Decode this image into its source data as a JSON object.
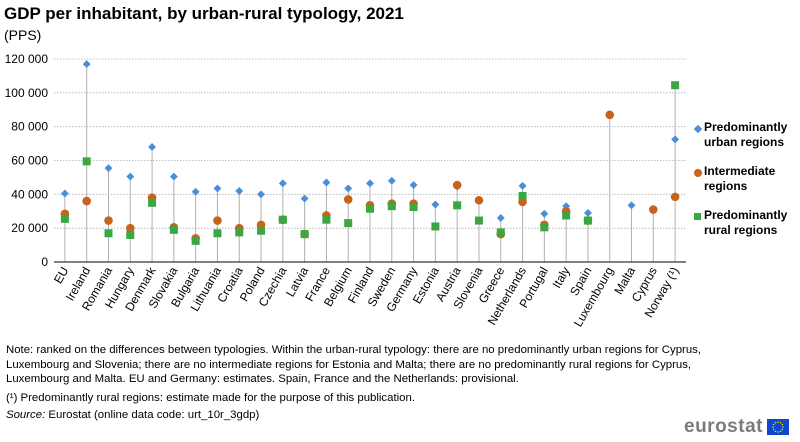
{
  "title": "GDP per inhabitant, by urban-rural typology, 2021",
  "subtitle": "(PPS)",
  "chart_data": {
    "type": "scatter",
    "categories": [
      "EU",
      "Ireland",
      "Romania",
      "Hungary",
      "Denmark",
      "Slovakia",
      "Bulgaria",
      "Lithuania",
      "Croatia",
      "Poland",
      "Czechia",
      "Latvia",
      "France",
      "Belgium",
      "Finland",
      "Sweden",
      "Germany",
      "Estonia",
      "Austria",
      "Slovenia",
      "Greece",
      "Netherlands",
      "Portugal",
      "Italy",
      "Spain",
      "Luxembourg",
      "Malta",
      "Cyprus",
      "Norway (¹)"
    ],
    "series": [
      {
        "name": "Predominantly urban regions",
        "marker": "diamond",
        "color": "#4a90d9",
        "values": [
          40500,
          117000,
          55500,
          50500,
          68000,
          50500,
          41500,
          43500,
          42000,
          40000,
          46500,
          37500,
          47000,
          43500,
          46500,
          48000,
          45500,
          34000,
          44500,
          null,
          26000,
          45000,
          28500,
          33000,
          29000,
          null,
          33500,
          null,
          72500
        ]
      },
      {
        "name": "Intermediate regions",
        "marker": "circle",
        "color": "#c8631b",
        "values": [
          28500,
          36000,
          24500,
          20000,
          38000,
          20500,
          14000,
          24500,
          20000,
          22000,
          25000,
          16500,
          27500,
          37000,
          33500,
          34500,
          34500,
          null,
          45500,
          36500,
          16500,
          35500,
          22000,
          30000,
          24500,
          87000,
          null,
          31000,
          38500
        ]
      },
      {
        "name": "Predominantly rural regions",
        "marker": "square",
        "color": "#3aa744",
        "values": [
          25500,
          59500,
          17000,
          16000,
          35000,
          19000,
          12500,
          17000,
          17500,
          18500,
          25000,
          16500,
          25000,
          23000,
          31500,
          33000,
          32500,
          21000,
          33500,
          24500,
          17500,
          39000,
          20500,
          27500,
          24500,
          null,
          null,
          null,
          104500
        ]
      }
    ],
    "ylim": [
      0,
      120000
    ],
    "yticks": [
      "0",
      "20 000",
      "40 000",
      "60 000",
      "80 000",
      "100 000",
      "120 000"
    ],
    "grid": true,
    "legend": "right"
  },
  "notes": {
    "note": "Note: ranked on the differences between typologies. Within the urban-rural typology: there are no predominantly urban regions for Cyprus, Luxembourg and Slovenia; there are no intermediate regions for Estonia and Malta; there are no predominantly rural regions for Cyprus, Luxembourg and Malta. EU and Germany: estimates. Spain, France and the Netherlands: provisional.",
    "footnote": "(¹) Predominantly rural regions: estimate made for the purpose of this publication.",
    "source_label": "Source:",
    "source_text": " Eurostat (online data code: urt_10r_3gdp)"
  },
  "logo": {
    "text": "eurostat",
    "flag_color": "#0e47cb",
    "star_color": "#ffde00"
  }
}
